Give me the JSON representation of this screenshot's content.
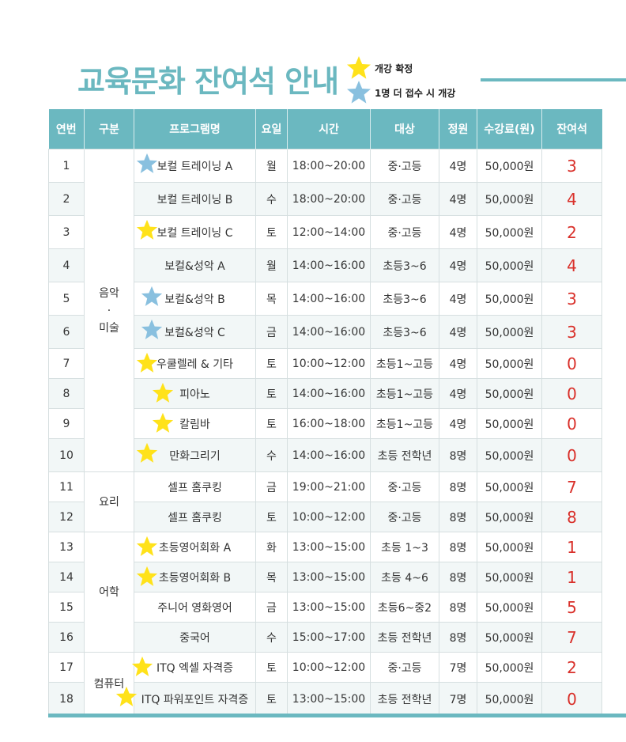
{
  "title": "교육문화 잔여석 안내",
  "legend": {
    "confirmed": {
      "label": "개강 확정",
      "icon": "star-yellow",
      "color": "#ffe21a"
    },
    "one_more": {
      "label": "1명 더 접수 시 개강",
      "icon": "star-blue",
      "color": "#89c0df"
    }
  },
  "accent_color": "#6bb8c0",
  "remaining_color": "#d9302a",
  "headers": [
    "연번",
    "구분",
    "프로그램명",
    "요일",
    "시간",
    "대상",
    "정원",
    "수강료(원)",
    "잔여석"
  ],
  "categories": {
    "music": "음악\n·\n미술",
    "cooking": "요리",
    "language": "어학",
    "computer": "컴퓨터"
  },
  "rows": [
    {
      "no": "1",
      "program": "보컬 트레이닝 A",
      "star": "blue",
      "day": "월",
      "time": "18:00~20:00",
      "target": "중·고등",
      "capacity": "4명",
      "fee": "50,000원",
      "remaining": "3"
    },
    {
      "no": "2",
      "program": "보컬 트레이닝 B",
      "star": "",
      "day": "수",
      "time": "18:00~20:00",
      "target": "중·고등",
      "capacity": "4명",
      "fee": "50,000원",
      "remaining": "4"
    },
    {
      "no": "3",
      "program": "보컬 트레이닝 C",
      "star": "yellow",
      "day": "토",
      "time": "12:00~14:00",
      "target": "중·고등",
      "capacity": "4명",
      "fee": "50,000원",
      "remaining": "2"
    },
    {
      "no": "4",
      "program": "보컬&성악 A",
      "star": "",
      "day": "월",
      "time": "14:00~16:00",
      "target": "초등3~6",
      "capacity": "4명",
      "fee": "50,000원",
      "remaining": "4"
    },
    {
      "no": "5",
      "program": "보컬&성악 B",
      "star": "blue",
      "day": "목",
      "time": "14:00~16:00",
      "target": "초등3~6",
      "capacity": "4명",
      "fee": "50,000원",
      "remaining": "3"
    },
    {
      "no": "6",
      "program": "보컬&성악 C",
      "star": "blue",
      "day": "금",
      "time": "14:00~16:00",
      "target": "초등3~6",
      "capacity": "4명",
      "fee": "50,000원",
      "remaining": "3"
    },
    {
      "no": "7",
      "program": "우쿨렐레 & 기타",
      "star": "yellow",
      "day": "토",
      "time": "10:00~12:00",
      "target": "초등1~고등",
      "capacity": "4명",
      "fee": "50,000원",
      "remaining": "0"
    },
    {
      "no": "8",
      "program": "피아노",
      "star": "yellow",
      "day": "토",
      "time": "14:00~16:00",
      "target": "초등1~고등",
      "capacity": "4명",
      "fee": "50,000원",
      "remaining": "0"
    },
    {
      "no": "9",
      "program": "칼림바",
      "star": "yellow",
      "day": "토",
      "time": "16:00~18:00",
      "target": "초등1~고등",
      "capacity": "4명",
      "fee": "50,000원",
      "remaining": "0"
    },
    {
      "no": "10",
      "program": "만화그리기",
      "star": "yellow",
      "day": "수",
      "time": "14:00~16:00",
      "target": "초등 전학년",
      "capacity": "8명",
      "fee": "50,000원",
      "remaining": "0"
    },
    {
      "no": "11",
      "program": "셀프 홈쿠킹",
      "star": "",
      "day": "금",
      "time": "19:00~21:00",
      "target": "중·고등",
      "capacity": "8명",
      "fee": "50,000원",
      "remaining": "7"
    },
    {
      "no": "12",
      "program": "셀프 홈쿠킹",
      "star": "",
      "day": "토",
      "time": "10:00~12:00",
      "target": "중·고등",
      "capacity": "8명",
      "fee": "50,000원",
      "remaining": "8"
    },
    {
      "no": "13",
      "program": "초등영어회화 A",
      "star": "yellow",
      "day": "화",
      "time": "13:00~15:00",
      "target": "초등 1~3",
      "capacity": "8명",
      "fee": "50,000원",
      "remaining": "1"
    },
    {
      "no": "14",
      "program": "초등영어회화 B",
      "star": "yellow",
      "day": "목",
      "time": "13:00~15:00",
      "target": "초등 4~6",
      "capacity": "8명",
      "fee": "50,000원",
      "remaining": "1"
    },
    {
      "no": "15",
      "program": "주니어 영화영어",
      "star": "",
      "day": "금",
      "time": "13:00~15:00",
      "target": "초등6~중2",
      "capacity": "8명",
      "fee": "50,000원",
      "remaining": "5"
    },
    {
      "no": "16",
      "program": "중국어",
      "star": "",
      "day": "수",
      "time": "15:00~17:00",
      "target": "초등 전학년",
      "capacity": "8명",
      "fee": "50,000원",
      "remaining": "7"
    },
    {
      "no": "17",
      "program": "ITQ 엑셀 자격증",
      "star": "yellow",
      "day": "토",
      "time": "10:00~12:00",
      "target": "중·고등",
      "capacity": "7명",
      "fee": "50,000원",
      "remaining": "2"
    },
    {
      "no": "18",
      "program": "ITQ 파워포인트 자격증",
      "star": "yellow",
      "day": "토",
      "time": "13:00~15:00",
      "target": "초등 전학년",
      "capacity": "7명",
      "fee": "50,000원",
      "remaining": "0"
    }
  ]
}
